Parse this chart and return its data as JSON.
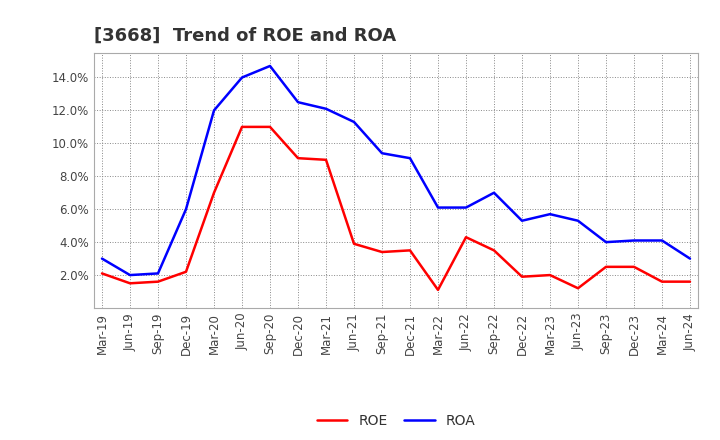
{
  "title": "[3668]  Trend of ROE and ROA",
  "labels": [
    "Mar-19",
    "Jun-19",
    "Sep-19",
    "Dec-19",
    "Mar-20",
    "Jun-20",
    "Sep-20",
    "Dec-20",
    "Mar-21",
    "Jun-21",
    "Sep-21",
    "Dec-21",
    "Mar-22",
    "Jun-22",
    "Sep-22",
    "Dec-22",
    "Mar-23",
    "Jun-23",
    "Sep-23",
    "Dec-23",
    "Mar-24",
    "Jun-24"
  ],
  "ROE": [
    2.1,
    1.5,
    1.6,
    2.2,
    7.0,
    11.0,
    11.0,
    9.1,
    9.0,
    3.9,
    3.4,
    3.5,
    1.1,
    4.3,
    3.5,
    1.9,
    2.0,
    1.2,
    2.5,
    2.5,
    1.6,
    1.6
  ],
  "ROA": [
    3.0,
    2.0,
    2.1,
    6.0,
    12.0,
    14.0,
    14.7,
    12.5,
    12.1,
    11.3,
    9.4,
    9.1,
    6.1,
    6.1,
    7.0,
    5.3,
    5.7,
    5.3,
    4.0,
    4.1,
    4.1,
    3.0
  ],
  "ROE_color": "#ff0000",
  "ROA_color": "#0000ff",
  "ylim": [
    0,
    15.5
  ],
  "yticks": [
    2,
    4,
    6,
    8,
    10,
    12,
    14
  ],
  "background_color": "#ffffff",
  "grid_color": "#888888",
  "title_fontsize": 13,
  "legend_fontsize": 10,
  "axis_fontsize": 8.5,
  "line_width": 1.8
}
